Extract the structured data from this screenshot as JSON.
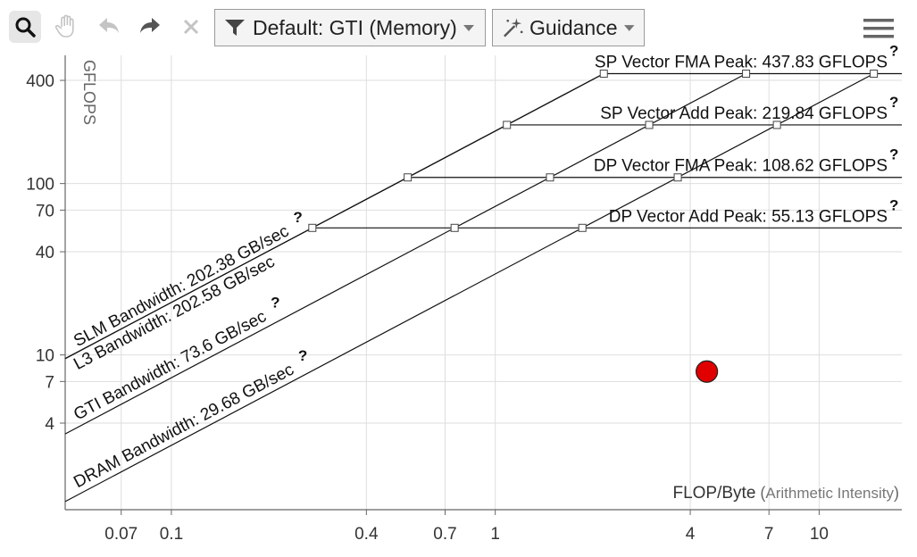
{
  "toolbar": {
    "filter_label": "Default: GTI (Memory)",
    "guidance_label": "Guidance",
    "colors": {
      "active_bg": "#e6e6e6",
      "disabled_icon": "#c4c4c4",
      "icon": "#555555"
    }
  },
  "chart_data": {
    "type": "scatter",
    "title": "",
    "x_scale": "log",
    "y_scale": "log",
    "xlabel_main": "FLOP/Byte",
    "xlabel_sub": "Arithmetic Intensity",
    "ylabel": "GFLOPS",
    "xlim": [
      0.047,
      18
    ],
    "ylim": [
      1.25,
      560
    ],
    "x_ticks": [
      0.07,
      0.1,
      0.4,
      0.7,
      1,
      4,
      7,
      10
    ],
    "x_tick_labels": [
      "0.07",
      "0.1",
      "0.4",
      "0.7",
      "1",
      "4",
      "7",
      "10"
    ],
    "y_ticks": [
      4,
      7,
      10,
      40,
      70,
      100,
      400
    ],
    "y_tick_labels": [
      "4",
      "7",
      "10",
      "40",
      "70",
      "100",
      "400"
    ],
    "grid": true,
    "compute_roofs": [
      {
        "name": "SP Vector FMA Peak",
        "label": "SP Vector FMA Peak: 437.83 GFLOPS",
        "gflops": 437.83
      },
      {
        "name": "SP Vector Add Peak",
        "label": "SP Vector Add Peak: 219.84 GFLOPS",
        "gflops": 219.84
      },
      {
        "name": "DP Vector FMA Peak",
        "label": "DP Vector FMA Peak: 108.62 GFLOPS",
        "gflops": 108.62
      },
      {
        "name": "DP Vector Add Peak",
        "label": "DP Vector Add Peak: 55.13 GFLOPS",
        "gflops": 55.13
      }
    ],
    "memory_roofs": [
      {
        "name": "SLM Bandwidth",
        "label": "SLM Bandwidth: 202.38 GB/sec",
        "gbps": 202.38,
        "color": "#111111",
        "help": true
      },
      {
        "name": "L3 Bandwidth",
        "label": "L3 Bandwidth: 202.58 GB/sec",
        "gbps": 202.58,
        "color": "#8a8a8a",
        "help": false
      },
      {
        "name": "GTI Bandwidth",
        "label": "GTI Bandwidth: 73.6 GB/sec",
        "gbps": 73.6,
        "color": "#111111",
        "help": true
      },
      {
        "name": "DRAM Bandwidth",
        "label": "DRAM Bandwidth: 29.68 GB/sec",
        "gbps": 29.68,
        "color": "#111111",
        "help": true
      }
    ],
    "help_mark": "?",
    "points": [
      {
        "x": 4.5,
        "y": 8.0,
        "color": "#e00000"
      }
    ]
  }
}
